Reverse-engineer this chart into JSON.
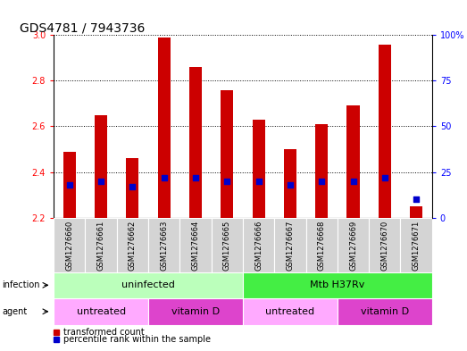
{
  "title": "GDS4781 / 7943736",
  "samples": [
    "GSM1276660",
    "GSM1276661",
    "GSM1276662",
    "GSM1276663",
    "GSM1276664",
    "GSM1276665",
    "GSM1276666",
    "GSM1276667",
    "GSM1276668",
    "GSM1276669",
    "GSM1276670",
    "GSM1276671"
  ],
  "transformed_count": [
    2.49,
    2.65,
    2.46,
    2.99,
    2.86,
    2.76,
    2.63,
    2.5,
    2.61,
    2.69,
    2.96,
    2.25
  ],
  "percentile_rank": [
    18,
    20,
    17,
    22,
    22,
    20,
    20,
    18,
    20,
    20,
    22,
    10
  ],
  "bar_bottom": 2.2,
  "ylim_left": [
    2.2,
    3.0
  ],
  "ylim_right": [
    0,
    100
  ],
  "yticks_left": [
    2.2,
    2.4,
    2.6,
    2.8,
    3.0
  ],
  "yticks_right": [
    0,
    25,
    50,
    75,
    100
  ],
  "bar_color": "#cc0000",
  "dot_color": "#0000cc",
  "infection_groups": [
    {
      "label": "uninfected",
      "start": 0,
      "end": 5,
      "color": "#bbffbb"
    },
    {
      "label": "Mtb H37Rv",
      "start": 6,
      "end": 11,
      "color": "#44ee44"
    }
  ],
  "agent_groups": [
    {
      "label": "untreated",
      "start": 0,
      "end": 2,
      "color": "#ffaaff"
    },
    {
      "label": "vitamin D",
      "start": 3,
      "end": 5,
      "color": "#dd44cc"
    },
    {
      "label": "untreated",
      "start": 6,
      "end": 8,
      "color": "#ffaaff"
    },
    {
      "label": "vitamin D",
      "start": 9,
      "end": 11,
      "color": "#dd44cc"
    }
  ],
  "legend_items": [
    {
      "label": "transformed count",
      "color": "#cc0000"
    },
    {
      "label": "percentile rank within the sample",
      "color": "#0000cc"
    }
  ],
  "bar_width": 0.4,
  "label_fontsize": 7,
  "tick_fontsize": 7,
  "title_fontsize": 10,
  "row_label_fontsize": 8,
  "sample_fontsize": 6
}
